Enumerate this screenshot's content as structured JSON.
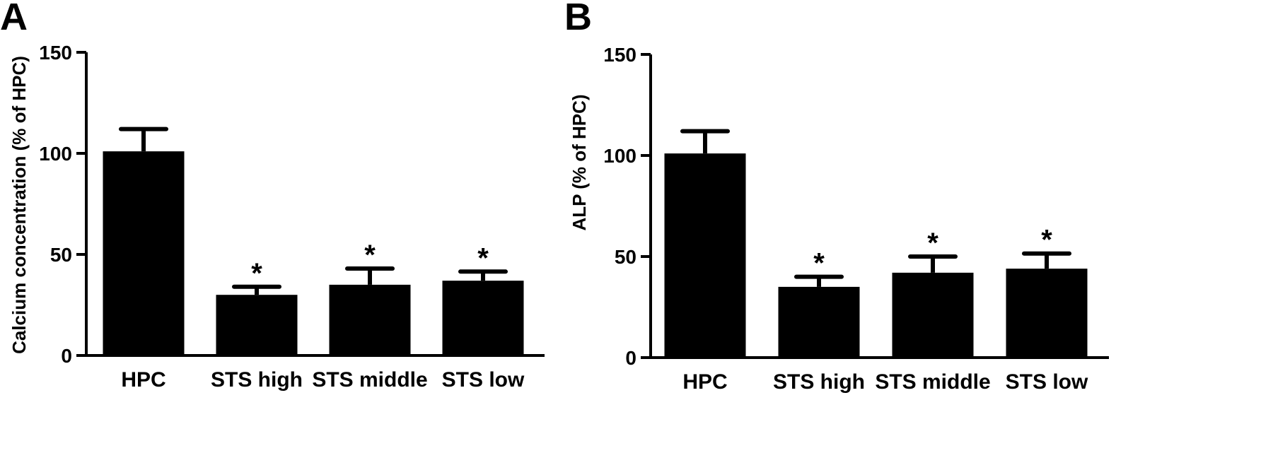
{
  "chart_data": [
    {
      "panel": "A",
      "type": "bar",
      "categories": [
        "HPC",
        "STS high",
        "STS middle",
        "STS low"
      ],
      "values": [
        101,
        30,
        35,
        37
      ],
      "errors": [
        11,
        4,
        8,
        4.5
      ],
      "significance": [
        "",
        "*",
        "*",
        "*"
      ],
      "title": "",
      "xlabel": "",
      "ylabel": "Calcium concentration (% of HPC)",
      "ylim": [
        0,
        150
      ],
      "yticks": [
        0,
        50,
        100,
        150
      ],
      "grid": false,
      "bar_color": "#000000"
    },
    {
      "panel": "B",
      "type": "bar",
      "categories": [
        "HPC",
        "STS high",
        "STS middle",
        "STS low"
      ],
      "values": [
        101,
        35,
        42,
        44
      ],
      "errors": [
        11,
        5,
        8,
        7.5
      ],
      "significance": [
        "",
        "*",
        "*",
        "*"
      ],
      "title": "",
      "xlabel": "",
      "ylabel": "ALP (% of HPC)",
      "ylim": [
        0,
        150
      ],
      "yticks": [
        0,
        50,
        100,
        150
      ],
      "grid": false,
      "bar_color": "#000000"
    }
  ]
}
